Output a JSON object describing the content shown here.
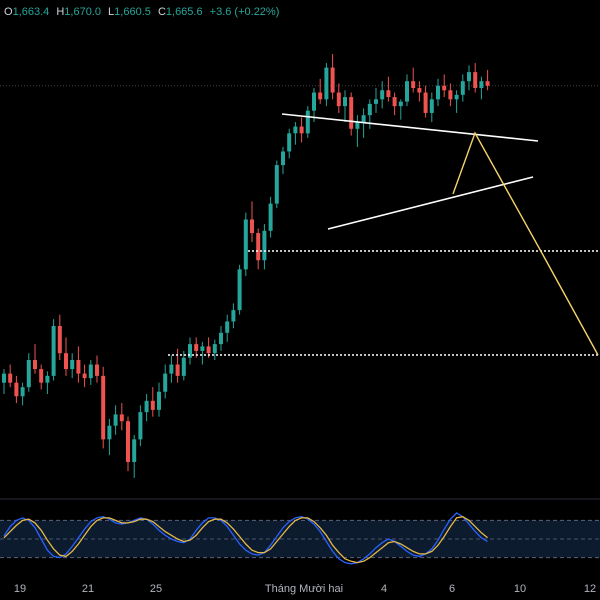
{
  "ohlc": {
    "open_label": "O",
    "open": "1,663.4",
    "high_label": "H",
    "high": "1,670.0",
    "low_label": "L",
    "low": "1,660.5",
    "close_label": "C",
    "close": "1,665.6",
    "change": "+3.6 (+0.22%)"
  },
  "colors": {
    "up": "#26a69a",
    "down": "#ef5350",
    "trendline": "#ffffff",
    "projection": "#f5d36b",
    "stoch_k": "#2962ff",
    "stoch_d": "#e5b84a",
    "dotted": "#ffffff"
  },
  "chart_data": [
    {
      "type": "candlestick",
      "x_tick_labels": [
        "19",
        "21",
        "25",
        "Tháng Mười hai",
        "4",
        "6",
        "10",
        "12"
      ],
      "candles": [
        [
          1540,
          1552,
          1530,
          1548
        ],
        [
          1548,
          1556,
          1536,
          1540
        ],
        [
          1540,
          1546,
          1522,
          1528
        ],
        [
          1528,
          1540,
          1520,
          1536
        ],
        [
          1536,
          1566,
          1532,
          1560
        ],
        [
          1560,
          1574,
          1548,
          1552
        ],
        [
          1552,
          1556,
          1534,
          1540
        ],
        [
          1540,
          1550,
          1530,
          1546
        ],
        [
          1546,
          1596,
          1542,
          1590
        ],
        [
          1590,
          1600,
          1560,
          1566
        ],
        [
          1566,
          1580,
          1546,
          1552
        ],
        [
          1552,
          1566,
          1544,
          1560
        ],
        [
          1560,
          1572,
          1540,
          1548
        ],
        [
          1548,
          1556,
          1536,
          1544
        ],
        [
          1544,
          1560,
          1538,
          1556
        ],
        [
          1556,
          1564,
          1540,
          1546
        ],
        [
          1546,
          1554,
          1482,
          1490
        ],
        [
          1490,
          1508,
          1476,
          1502
        ],
        [
          1502,
          1520,
          1494,
          1512
        ],
        [
          1512,
          1522,
          1498,
          1506
        ],
        [
          1506,
          1510,
          1462,
          1470
        ],
        [
          1470,
          1494,
          1456,
          1490
        ],
        [
          1490,
          1520,
          1484,
          1514
        ],
        [
          1514,
          1530,
          1506,
          1524
        ],
        [
          1524,
          1536,
          1510,
          1516
        ],
        [
          1516,
          1540,
          1510,
          1532
        ],
        [
          1532,
          1556,
          1526,
          1548
        ],
        [
          1548,
          1564,
          1540,
          1556
        ],
        [
          1556,
          1570,
          1540,
          1546
        ],
        [
          1546,
          1568,
          1542,
          1562
        ],
        [
          1562,
          1580,
          1556,
          1574
        ],
        [
          1574,
          1580,
          1562,
          1568
        ],
        [
          1568,
          1576,
          1556,
          1572
        ],
        [
          1572,
          1580,
          1562,
          1566
        ],
        [
          1566,
          1578,
          1560,
          1574
        ],
        [
          1574,
          1590,
          1568,
          1584
        ],
        [
          1584,
          1600,
          1576,
          1594
        ],
        [
          1594,
          1610,
          1588,
          1604
        ],
        [
          1604,
          1644,
          1600,
          1640
        ],
        [
          1640,
          1690,
          1634,
          1684
        ],
        [
          1684,
          1700,
          1664,
          1672
        ],
        [
          1672,
          1676,
          1640,
          1648
        ],
        [
          1648,
          1680,
          1640,
          1674
        ],
        [
          1674,
          1704,
          1668,
          1698
        ],
        [
          1698,
          1736,
          1694,
          1732
        ],
        [
          1732,
          1748,
          1724,
          1744
        ],
        [
          1744,
          1764,
          1738,
          1760
        ],
        [
          1760,
          1770,
          1750,
          1766
        ],
        [
          1766,
          1774,
          1752,
          1760
        ],
        [
          1760,
          1784,
          1756,
          1780
        ],
        [
          1780,
          1800,
          1770,
          1796
        ],
        [
          1796,
          1808,
          1786,
          1790
        ],
        [
          1790,
          1822,
          1784,
          1818
        ],
        [
          1818,
          1830,
          1790,
          1796
        ],
        [
          1796,
          1804,
          1778,
          1784
        ],
        [
          1784,
          1798,
          1770,
          1792
        ],
        [
          1792,
          1796,
          1758,
          1764
        ],
        [
          1764,
          1776,
          1748,
          1770
        ],
        [
          1770,
          1782,
          1756,
          1776
        ],
        [
          1776,
          1790,
          1764,
          1786
        ],
        [
          1786,
          1800,
          1778,
          1790
        ],
        [
          1790,
          1806,
          1782,
          1798
        ],
        [
          1798,
          1810,
          1788,
          1792
        ],
        [
          1792,
          1796,
          1776,
          1784
        ],
        [
          1784,
          1790,
          1772,
          1788
        ],
        [
          1788,
          1812,
          1784,
          1806
        ],
        [
          1806,
          1818,
          1796,
          1800
        ],
        [
          1800,
          1806,
          1788,
          1796
        ],
        [
          1796,
          1802,
          1774,
          1778
        ],
        [
          1778,
          1796,
          1770,
          1790
        ],
        [
          1790,
          1808,
          1784,
          1802
        ],
        [
          1802,
          1812,
          1792,
          1798
        ],
        [
          1798,
          1804,
          1784,
          1790
        ],
        [
          1790,
          1798,
          1778,
          1794
        ],
        [
          1794,
          1812,
          1788,
          1806
        ],
        [
          1806,
          1820,
          1798,
          1814
        ],
        [
          1814,
          1822,
          1796,
          1800
        ],
        [
          1800,
          1810,
          1790,
          1806
        ],
        [
          1806,
          1816,
          1798,
          1802
        ]
      ]
    },
    {
      "type": "line",
      "series": [
        {
          "values": [
            55,
            70,
            80,
            84,
            80,
            68,
            50,
            32,
            22,
            20,
            26,
            38,
            52,
            66,
            78,
            84,
            86,
            82,
            76,
            74,
            76,
            80,
            84,
            82,
            74,
            64,
            56,
            50,
            46,
            44,
            50,
            64,
            76,
            84,
            84,
            80,
            70,
            56,
            42,
            32,
            26,
            24,
            28,
            40,
            54,
            68,
            78,
            84,
            86,
            82,
            74,
            62,
            46,
            30,
            18,
            12,
            10,
            12,
            18,
            26,
            36,
            44,
            50,
            46,
            38,
            30,
            24,
            22,
            26,
            34,
            48,
            66,
            82,
            92,
            86,
            74,
            62,
            52,
            46
          ]
        },
        {
          "values": [
            52,
            62,
            72,
            80,
            82,
            76,
            64,
            48,
            34,
            24,
            22,
            30,
            42,
            56,
            70,
            80,
            84,
            84,
            80,
            76,
            76,
            78,
            82,
            82,
            78,
            70,
            62,
            56,
            50,
            46,
            48,
            56,
            68,
            78,
            82,
            82,
            76,
            66,
            54,
            42,
            32,
            28,
            28,
            34,
            46,
            58,
            70,
            80,
            84,
            84,
            78,
            68,
            56,
            40,
            28,
            18,
            14,
            12,
            14,
            20,
            28,
            36,
            44,
            46,
            42,
            36,
            30,
            26,
            26,
            30,
            40,
            54,
            70,
            84,
            86,
            80,
            70,
            60,
            52
          ]
        }
      ]
    }
  ]
}
